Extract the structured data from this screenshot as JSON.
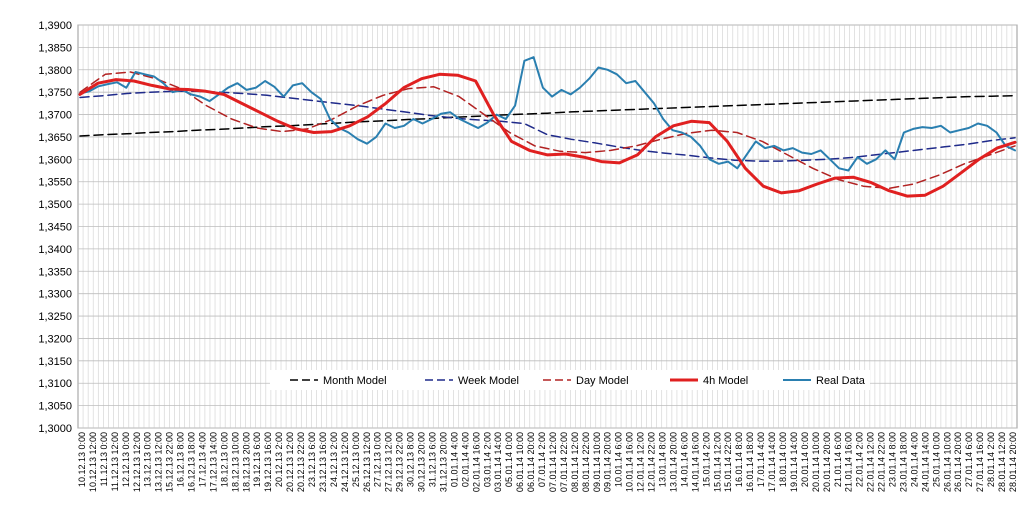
{
  "chart_data": {
    "type": "line",
    "title": "",
    "xlabel": "",
    "ylabel": "",
    "ylim": [
      1.3,
      1.39
    ],
    "y_ticks": [
      "1,3000",
      "1,3050",
      "1,3100",
      "1,3150",
      "1,3200",
      "1,3250",
      "1,3300",
      "1,3350",
      "1,3400",
      "1,3450",
      "1,3500",
      "1,3550",
      "1,3600",
      "1,3650",
      "1,3700",
      "1,3750",
      "1,3800",
      "1,3850",
      "1,3900"
    ],
    "grid": true,
    "legend_position": "bottom-inside",
    "x_tick_labels": [
      "10.12.13 0:00",
      "10.12.13 12:00",
      "11.12.13 0:00",
      "11.12.13 12:00",
      "12.12.13 0:00",
      "12.12.13 12:00",
      "13.12.13 0:00",
      "13.12.13 12:00",
      "15.12.13 22:00",
      "16.12.13 8:00",
      "16.12.13 18:00",
      "17.12.13 4:00",
      "17.12.13 14:00",
      "18.12.13 0:00",
      "18.12.13 10:00",
      "18.12.13 20:00",
      "19.12.13 6:00",
      "19.12.13 16:00",
      "20.12.13 2:00",
      "20.12.13 12:00",
      "20.12.13 22:00",
      "23.12.13 6:00",
      "23.12.13 16:00",
      "24.12.13 2:00",
      "24.12.13 12:00",
      "25.12.13 0:00",
      "26.12.13 12:00",
      "27.12.13 0:00",
      "27.12.13 12:00",
      "29.12.13 22:00",
      "30.12.13 8:00",
      "30.12.13 20:00",
      "31.12.13 6:00",
      "31.12.13 20:00",
      "01.01.14 4:00",
      "02.01.14 4:00",
      "02.01.14 16:00",
      "03.01.14 2:00",
      "03.01.14 14:00",
      "05.01.14 0:00",
      "06.01.14 10:00",
      "06.01.14 20:00",
      "07.01.14 2:00",
      "07.01.14 12:00",
      "07.01.14 22:00",
      "08.01.14 12:00",
      "08.01.14 22:00",
      "09.01.14 10:00",
      "09.01.14 20:00",
      "10.01.14 6:00",
      "10.01.14 16:00",
      "12.01.14 12:00",
      "12.01.14 22:00",
      "13.01.14 8:00",
      "13.01.14 20:00",
      "14.01.14 6:00",
      "14.01.14 16:00",
      "15.01.14 2:00",
      "15.01.14 12:00",
      "15.01.14 22:00",
      "16.01.14 8:00",
      "16.01.14 18:00",
      "17.01.14 4:00",
      "17.01.14 14:00",
      "18.01.14 0:00",
      "19.01.14 14:00",
      "20.01.14 0:00",
      "20.01.14 10:00",
      "20.01.14 20:00",
      "21.01.14 6:00",
      "21.01.14 16:00",
      "22.01.14 2:00",
      "22.01.14 12:00",
      "22.01.14 22:00",
      "23.01.14 8:00",
      "23.01.14 18:00",
      "24.01.14 4:00",
      "24.01.14 14:00",
      "25.01.14 0:00",
      "26.01.14 10:00",
      "26.01.14 20:00",
      "27.01.14 6:00",
      "27.01.14 16:00",
      "28.01.14 2:00",
      "28.01.14 12:00",
      "28.01.14 20:00"
    ],
    "series": [
      {
        "name": "Month Model",
        "color": "#000000",
        "style": "dashed",
        "width": 1.5,
        "values": [
          1.3652,
          1.3655,
          1.3657,
          1.366,
          1.3662,
          1.3665,
          1.3667,
          1.367,
          1.3673,
          1.3675,
          1.3678,
          1.3681,
          1.3684,
          1.3686,
          1.3689,
          1.3691,
          1.3694,
          1.3696,
          1.3699,
          1.3701,
          1.3703,
          1.3706,
          1.3708,
          1.371,
          1.3712,
          1.3714,
          1.3716,
          1.3718,
          1.372,
          1.3722,
          1.3724,
          1.3726,
          1.3728,
          1.373,
          1.3732,
          1.3734,
          1.3736,
          1.3738,
          1.374,
          1.3741,
          1.3742
        ]
      },
      {
        "name": "Week Model",
        "color": "#1f2a8a",
        "style": "dashed",
        "width": 1.5,
        "values": [
          1.3738,
          1.3742,
          1.3747,
          1.375,
          1.3752,
          1.3752,
          1.375,
          1.3747,
          1.3743,
          1.3737,
          1.3731,
          1.3725,
          1.3719,
          1.3712,
          1.3705,
          1.3698,
          1.3692,
          1.3688,
          1.3685,
          1.368,
          1.3655,
          1.3645,
          1.3637,
          1.3628,
          1.362,
          1.3614,
          1.3609,
          1.3603,
          1.3598,
          1.3596,
          1.3596,
          1.3598,
          1.36,
          1.3604,
          1.361,
          1.3616,
          1.3622,
          1.3628,
          1.3634,
          1.3642,
          1.3648
        ]
      },
      {
        "name": "Day Model",
        "color": "#b22222",
        "style": "dashed",
        "width": 1.5,
        "values": [
          1.375,
          1.379,
          1.3795,
          1.378,
          1.3758,
          1.372,
          1.369,
          1.367,
          1.3662,
          1.3668,
          1.369,
          1.372,
          1.3743,
          1.3758,
          1.3762,
          1.374,
          1.37,
          1.366,
          1.363,
          1.3618,
          1.3615,
          1.362,
          1.363,
          1.3645,
          1.3658,
          1.3665,
          1.366,
          1.364,
          1.361,
          1.358,
          1.3555,
          1.354,
          1.3535,
          1.3545,
          1.3565,
          1.359,
          1.361,
          1.363
        ]
      },
      {
        "name": "4h Model",
        "color": "#e02020",
        "style": "solid",
        "width": 3,
        "values": [
          1.3745,
          1.377,
          1.3778,
          1.3775,
          1.3765,
          1.3757,
          1.3756,
          1.3752,
          1.3745,
          1.3725,
          1.3705,
          1.3685,
          1.3668,
          1.366,
          1.3662,
          1.3675,
          1.3695,
          1.3725,
          1.376,
          1.378,
          1.379,
          1.3788,
          1.3775,
          1.37,
          1.364,
          1.362,
          1.361,
          1.3612,
          1.3605,
          1.3595,
          1.3592,
          1.361,
          1.365,
          1.3675,
          1.3685,
          1.3682,
          1.364,
          1.358,
          1.354,
          1.3525,
          1.353,
          1.3545,
          1.3558,
          1.356,
          1.3548,
          1.353,
          1.3518,
          1.352,
          1.354,
          1.357,
          1.36,
          1.3625,
          1.3638
        ]
      },
      {
        "name": "Real Data",
        "color": "#2a7fb0",
        "style": "solid",
        "width": 2,
        "values": [
          1.3747,
          1.3752,
          1.3763,
          1.3768,
          1.3772,
          1.376,
          1.3795,
          1.379,
          1.3785,
          1.377,
          1.375,
          1.3755,
          1.3745,
          1.374,
          1.373,
          1.3745,
          1.376,
          1.377,
          1.3755,
          1.376,
          1.3775,
          1.3762,
          1.374,
          1.3765,
          1.377,
          1.375,
          1.3735,
          1.369,
          1.367,
          1.366,
          1.3645,
          1.3635,
          1.365,
          1.368,
          1.367,
          1.3675,
          1.369,
          1.368,
          1.369,
          1.3702,
          1.3705,
          1.369,
          1.368,
          1.367,
          1.3682,
          1.37,
          1.369,
          1.372,
          1.382,
          1.3828,
          1.376,
          1.374,
          1.3755,
          1.3745,
          1.376,
          1.378,
          1.3805,
          1.38,
          1.379,
          1.377,
          1.3775,
          1.375,
          1.3725,
          1.369,
          1.3665,
          1.366,
          1.365,
          1.363,
          1.36,
          1.359,
          1.3595,
          1.358,
          1.361,
          1.364,
          1.3625,
          1.363,
          1.362,
          1.3625,
          1.3615,
          1.3612,
          1.362,
          1.36,
          1.358,
          1.3575,
          1.3605,
          1.359,
          1.36,
          1.362,
          1.36,
          1.366,
          1.3668,
          1.3672,
          1.367,
          1.3675,
          1.366,
          1.3665,
          1.367,
          1.368,
          1.3675,
          1.366,
          1.363,
          1.362
        ]
      }
    ]
  }
}
